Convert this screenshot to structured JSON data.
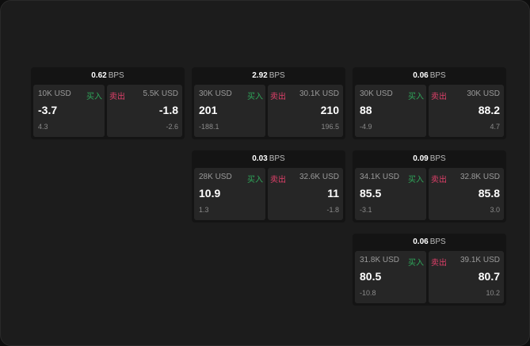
{
  "unit": "BPS",
  "buy_label": "买入",
  "sell_label": "卖出",
  "colors": {
    "buy": "#2fa65a",
    "sell": "#e0406a",
    "background": "#1c1c1c"
  },
  "cards": [
    {
      "spread": "0.62",
      "buy": {
        "size": "10K USD",
        "price": "-3.7",
        "change": "4.3"
      },
      "sell": {
        "size": "5.5K USD",
        "price": "-1.8",
        "change": "-2.6"
      }
    },
    {
      "spread": "2.92",
      "buy": {
        "size": "30K USD",
        "price": "201",
        "change": "-188.1"
      },
      "sell": {
        "size": "30.1K USD",
        "price": "210",
        "change": "196.5"
      }
    },
    {
      "spread": "0.06",
      "buy": {
        "size": "30K USD",
        "price": "88",
        "change": "-4.9"
      },
      "sell": {
        "size": "30K USD",
        "price": "88.2",
        "change": "4.7"
      }
    },
    {
      "spread": "0.03",
      "buy": {
        "size": "28K USD",
        "price": "10.9",
        "change": "1.3"
      },
      "sell": {
        "size": "32.6K USD",
        "price": "11",
        "change": "-1.8"
      }
    },
    {
      "spread": "0.09",
      "buy": {
        "size": "34.1K USD",
        "price": "85.5",
        "change": "-3.1"
      },
      "sell": {
        "size": "32.8K USD",
        "price": "85.8",
        "change": "3.0"
      }
    },
    {
      "spread": "0.06",
      "buy": {
        "size": "31.8K USD",
        "price": "80.5",
        "change": "-10.8"
      },
      "sell": {
        "size": "39.1K USD",
        "price": "80.7",
        "change": "10.2"
      }
    }
  ]
}
